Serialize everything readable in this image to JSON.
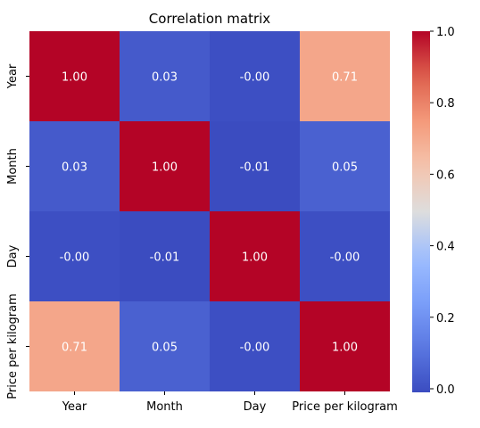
{
  "chart_data": {
    "type": "heatmap",
    "title": "Correlation matrix",
    "x_labels": [
      "Year",
      "Month",
      "Day",
      "Price per kilogram"
    ],
    "y_labels": [
      "Year",
      "Month",
      "Day",
      "Price per kilogram"
    ],
    "values": [
      [
        1.0,
        0.03,
        -0.0,
        0.71
      ],
      [
        0.03,
        1.0,
        -0.01,
        0.05
      ],
      [
        -0.0,
        -0.01,
        1.0,
        -0.0
      ],
      [
        0.71,
        0.05,
        -0.0,
        1.0
      ]
    ],
    "value_labels": [
      [
        "1.00",
        "0.03",
        "-0.00",
        "0.71"
      ],
      [
        "0.03",
        "1.00",
        "-0.01",
        "0.05"
      ],
      [
        "-0.00",
        "-0.01",
        "1.00",
        "-0.00"
      ],
      [
        "0.71",
        "0.05",
        "-0.00",
        "1.00"
      ]
    ],
    "colormap": "coolwarm",
    "colorbar": {
      "range": [
        -0.01,
        1.0
      ],
      "ticks": [
        0.0,
        0.2,
        0.4,
        0.6,
        0.8,
        1.0
      ],
      "tick_labels": [
        "0.0",
        "0.2",
        "0.4",
        "0.6",
        "0.8",
        "1.0"
      ]
    }
  }
}
